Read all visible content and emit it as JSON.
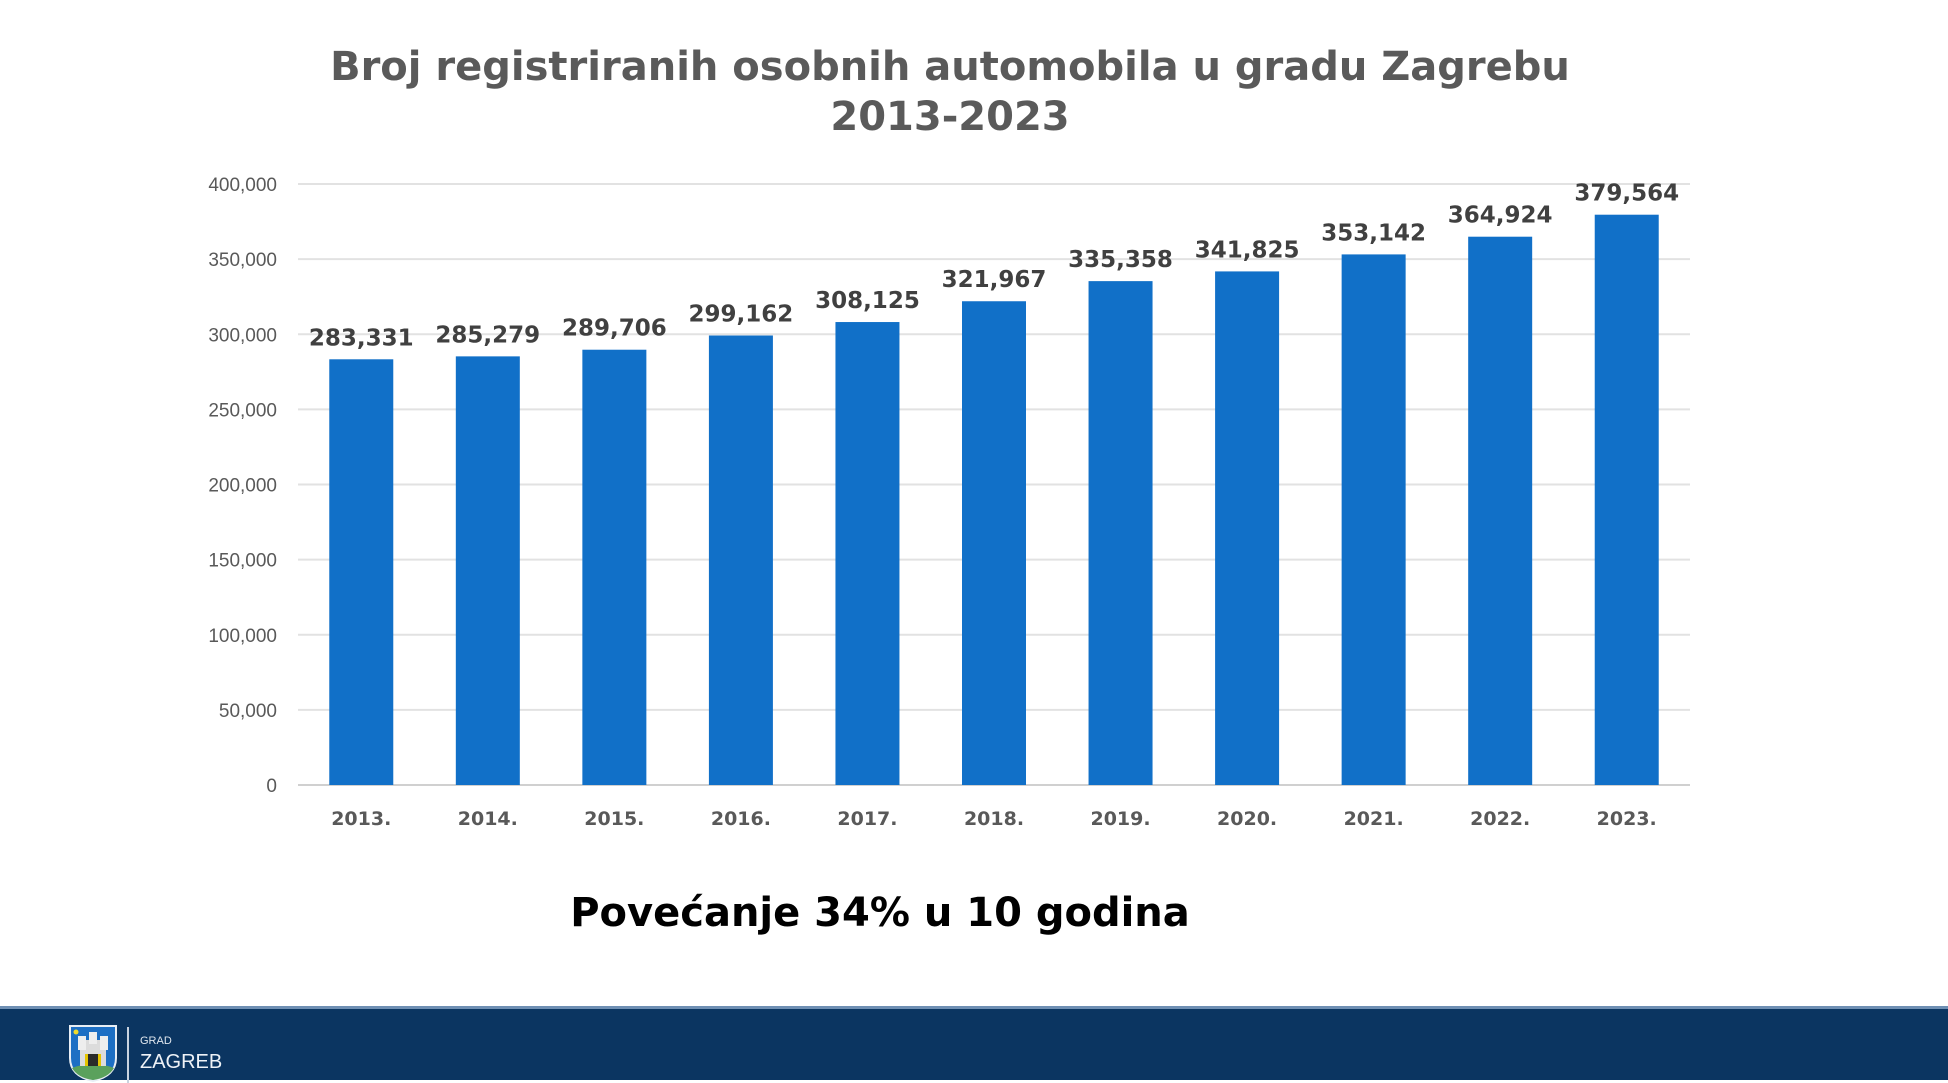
{
  "chart_data": {
    "type": "bar",
    "title": "Broj registriranih osobnih automobila u gradu Zagrebu",
    "title_line2": "2013-2023",
    "categories": [
      "2013.",
      "2014.",
      "2015.",
      "2016.",
      "2017.",
      "2018.",
      "2019.",
      "2020.",
      "2021.",
      "2022.",
      "2023."
    ],
    "values": [
      283331,
      285279,
      289706,
      299162,
      308125,
      321967,
      335358,
      341825,
      353142,
      364924,
      379564
    ],
    "data_labels": [
      "283,331",
      "285,279",
      "289,706",
      "299,162",
      "308,125",
      "321,967",
      "335,358",
      "341,825",
      "353,142",
      "364,924",
      "379,564"
    ],
    "ylim": [
      0,
      400000
    ],
    "yticks": [
      "0",
      "50,000",
      "100,000",
      "150,000",
      "200,000",
      "250,000",
      "300,000",
      "350,000",
      "400,000"
    ],
    "xlabel": "",
    "ylabel": "",
    "grid": true,
    "legend": "none",
    "bar_color": "#1170c8"
  },
  "annotation": "Povećanje 34% u 10 godina",
  "footer": {
    "grad": "GRAD",
    "city": "ZAGREB",
    "background": "#0b3561"
  }
}
